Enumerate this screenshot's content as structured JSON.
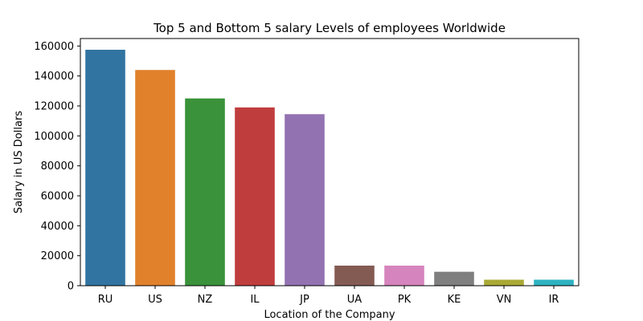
{
  "chart_data": {
    "type": "bar",
    "title": "Top 5 and Bottom 5 salary Levels of employees Worldwide",
    "xlabel": "Location of the Company",
    "ylabel": "Salary in US Dollars",
    "categories": [
      "RU",
      "US",
      "NZ",
      "IL",
      "JP",
      "UA",
      "PK",
      "KE",
      "VN",
      "IR"
    ],
    "values": [
      157500,
      144000,
      125000,
      119000,
      114500,
      13400,
      13400,
      9300,
      4000,
      4000
    ],
    "colors": [
      "#3274a1",
      "#e1812c",
      "#3a923a",
      "#c03d3e",
      "#9372b2",
      "#845b53",
      "#d684bd",
      "#7f7f7f",
      "#a9aa35",
      "#2eb2c1"
    ],
    "ylim": [
      0,
      165000
    ],
    "yticks": [
      0,
      20000,
      40000,
      60000,
      80000,
      100000,
      120000,
      140000,
      160000
    ],
    "grid": false,
    "legend": "none"
  }
}
